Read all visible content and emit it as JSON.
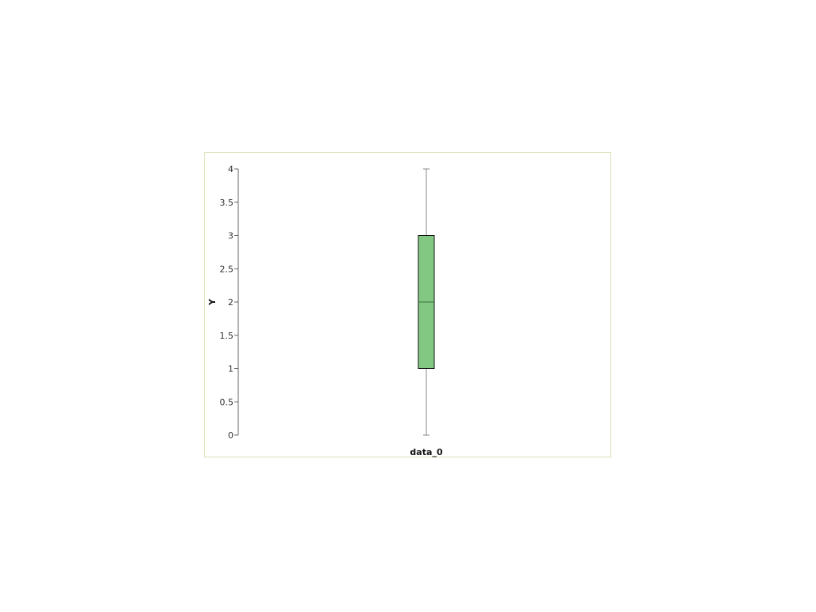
{
  "chart_data": {
    "type": "box",
    "categories": [
      "data_0"
    ],
    "series": [
      {
        "category": "data_0",
        "min": 0,
        "q1": 1,
        "median": 2,
        "q3": 3,
        "max": 4
      }
    ],
    "ylabel": "Y",
    "xlabel": "",
    "ylim": [
      0,
      4
    ],
    "yticks": [
      "0",
      "0.5",
      "1",
      "1.5",
      "2",
      "2.5",
      "3",
      "3.5",
      "4"
    ],
    "grid": false,
    "legend": "none",
    "colors": {
      "box_fill": "#82c882",
      "box_stroke": "#111111",
      "whisker": "#888888",
      "axis": "#666666",
      "frame": "#d8e3b8"
    }
  }
}
